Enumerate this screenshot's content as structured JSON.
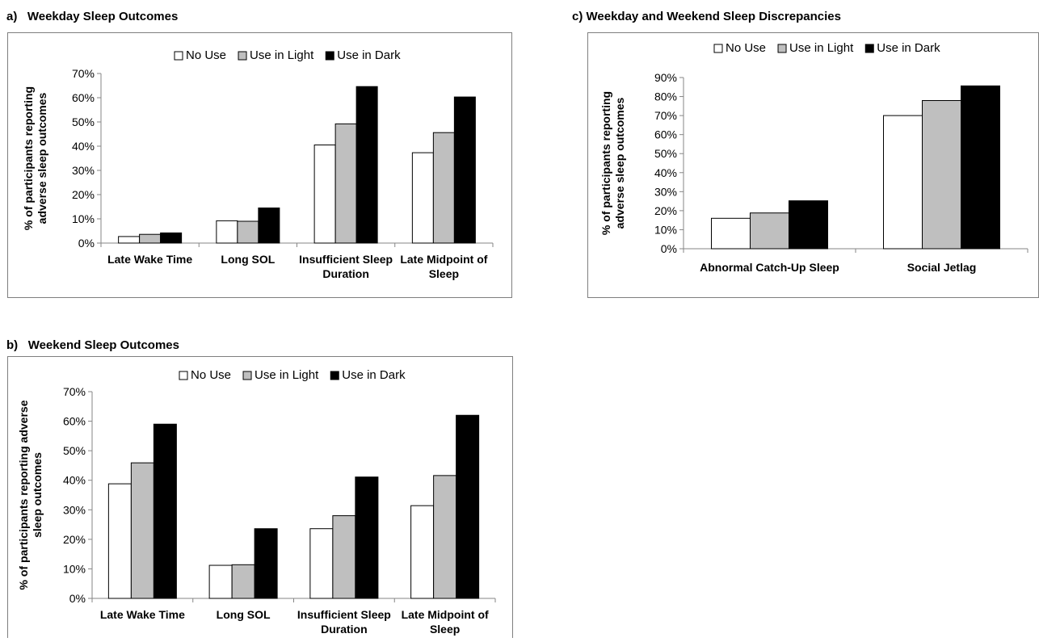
{
  "series_colors": [
    "#ffffff",
    "#bfbfbf",
    "#000000"
  ],
  "chart_data": [
    {
      "panel": "a)",
      "type": "bar",
      "title": "Weekday Sleep Outcomes",
      "ylabel_lines": [
        "% of participants reporting",
        "adverse sleep outcomes"
      ],
      "ylim": [
        0,
        70
      ],
      "yticks": [
        "0%",
        "10%",
        "20%",
        "30%",
        "40%",
        "50%",
        "60%",
        "70%"
      ],
      "categories": [
        [
          "Late Wake Time"
        ],
        [
          "Long SOL"
        ],
        [
          "Insufficient Sleep",
          "Duration"
        ],
        [
          "Late Midpoint of",
          "Sleep"
        ]
      ],
      "series": [
        {
          "name": "No Use",
          "values": [
            2.7,
            9.2,
            40.5,
            37.3
          ]
        },
        {
          "name": "Use in Light",
          "values": [
            3.6,
            9.0,
            49.2,
            45.6
          ]
        },
        {
          "name": "Use in Dark",
          "values": [
            4.2,
            14.5,
            64.6,
            60.3
          ]
        }
      ],
      "legend": "top"
    },
    {
      "panel": "b)",
      "type": "bar",
      "title": "Weekend Sleep Outcomes",
      "ylabel_lines": [
        "% of participants reporting adverse",
        "sleep outcomes"
      ],
      "ylim": [
        0,
        70
      ],
      "yticks": [
        "0%",
        "10%",
        "20%",
        "30%",
        "40%",
        "50%",
        "60%",
        "70%"
      ],
      "categories": [
        [
          "Late Wake Time"
        ],
        [
          "Long SOL"
        ],
        [
          "Insufficient Sleep",
          "Duration"
        ],
        [
          "Late Midpoint of",
          "Sleep"
        ]
      ],
      "series": [
        {
          "name": "No Use",
          "values": [
            38.8,
            11.2,
            23.6,
            31.4
          ]
        },
        {
          "name": "Use in Light",
          "values": [
            45.9,
            11.4,
            28.0,
            41.6
          ]
        },
        {
          "name": "Use in Dark",
          "values": [
            59.0,
            23.6,
            41.1,
            62.0
          ]
        }
      ],
      "legend": "top"
    },
    {
      "panel": "c)",
      "type": "bar",
      "title": "Weekday and Weekend Sleep Discrepancies",
      "ylabel_lines": [
        "% of participants reporting",
        "adverse sleep outcomes"
      ],
      "ylim": [
        0,
        90
      ],
      "yticks": [
        "0%",
        "10%",
        "20%",
        "30%",
        "40%",
        "50%",
        "60%",
        "70%",
        "80%",
        "90%"
      ],
      "categories": [
        [
          "Abnormal Catch-Up Sleep"
        ],
        [
          "Social Jetlag"
        ]
      ],
      "series": [
        {
          "name": "No Use",
          "values": [
            16.0,
            70.0
          ]
        },
        {
          "name": "Use in Light",
          "values": [
            18.8,
            77.9
          ]
        },
        {
          "name": "Use in Dark",
          "values": [
            25.2,
            85.6
          ]
        }
      ],
      "legend": "top"
    }
  ]
}
